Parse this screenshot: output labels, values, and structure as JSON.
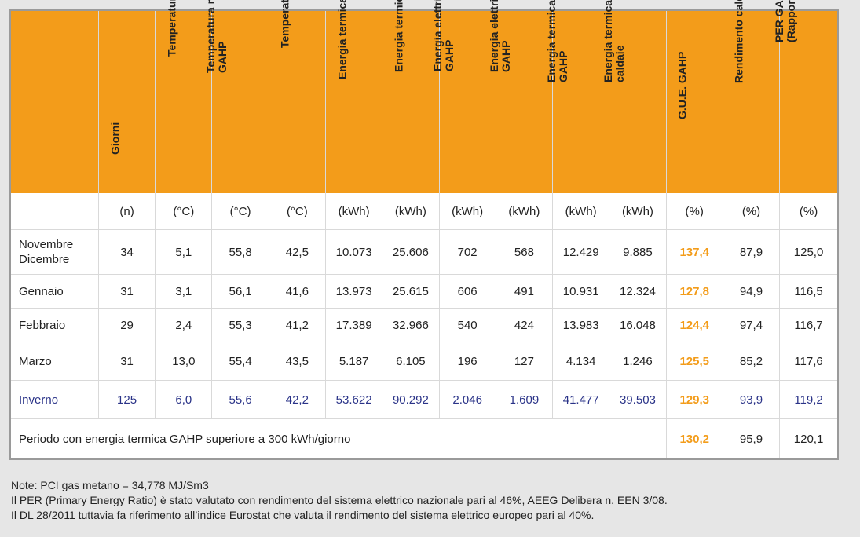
{
  "headers": [
    "",
    "Giorni",
    "Temperatura aria esterna",
    "Temperatura mandata\nGAHP",
    "Temperatura ritorno GAHP",
    "Energia termica PdC",
    "Energia termica totale",
    "Energia elettrica lorda\nGAHP",
    "Energia elettrica netta\nGAHP",
    "Energia termica gas\nGAHP",
    "Energia termica gas\ncaldaie",
    "G.U.E. GAHP",
    "Rendimento caldaie",
    "PER GAHP\n(Rapporto energia primaria)"
  ],
  "units": [
    "",
    "(n)",
    "(°C)",
    "(°C)",
    "(°C)",
    "(kWh)",
    "(kWh)",
    "(kWh)",
    "(kWh)",
    "(kWh)",
    "(kWh)",
    "(%)",
    "(%)",
    "(%)"
  ],
  "rows": [
    [
      "Novembre\nDicembre",
      "34",
      "5,1",
      "55,8",
      "42,5",
      "10.073",
      "25.606",
      "702",
      "568",
      "12.429",
      "9.885",
      "137,4",
      "87,9",
      "125,0"
    ],
    [
      "Gennaio",
      "31",
      "3,1",
      "56,1",
      "41,6",
      "13.973",
      "25.615",
      "606",
      "491",
      "10.931",
      "12.324",
      "127,8",
      "94,9",
      "116,5"
    ],
    [
      "Febbraio",
      "29",
      "2,4",
      "55,3",
      "41,2",
      "17.389",
      "32.966",
      "540",
      "424",
      "13.983",
      "16.048",
      "124,4",
      "97,4",
      "116,7"
    ],
    [
      "Marzo",
      "31",
      "13,0",
      "55,4",
      "43,5",
      "5.187",
      "6.105",
      "196",
      "127",
      "4.134",
      "1.246",
      "125,5",
      "85,2",
      "117,6"
    ],
    [
      "Inverno",
      "125",
      "6,0",
      "55,6",
      "42,2",
      "53.622",
      "90.292",
      "2.046",
      "1.609",
      "41.477",
      "39.503",
      "129,3",
      "93,9",
      "119,2"
    ]
  ],
  "period": {
    "label": "Periodo con energia termica GAHP superiore a 300 kWh/giorno",
    "gue": "130,2",
    "rendimento": "95,9",
    "per": "120,1"
  },
  "notes": {
    "line1": "Note: PCI gas metano = 34,778 MJ/Sm3",
    "line2": "Il PER (Primary Energy Ratio) è stato valutato con rendimento del sistema elettrico nazionale pari al 46%, AEEG Delibera n. EEN 3/08.",
    "line3": "Il DL 28/2011 tuttavia fa riferimento all’indice Eurostat che valuta il rendimento del sistema elettrico europeo pari al 40%."
  },
  "colors": {
    "header_bg": "#f39c1a",
    "highlight": "#f39c1a",
    "total_row": "#2a3388"
  }
}
